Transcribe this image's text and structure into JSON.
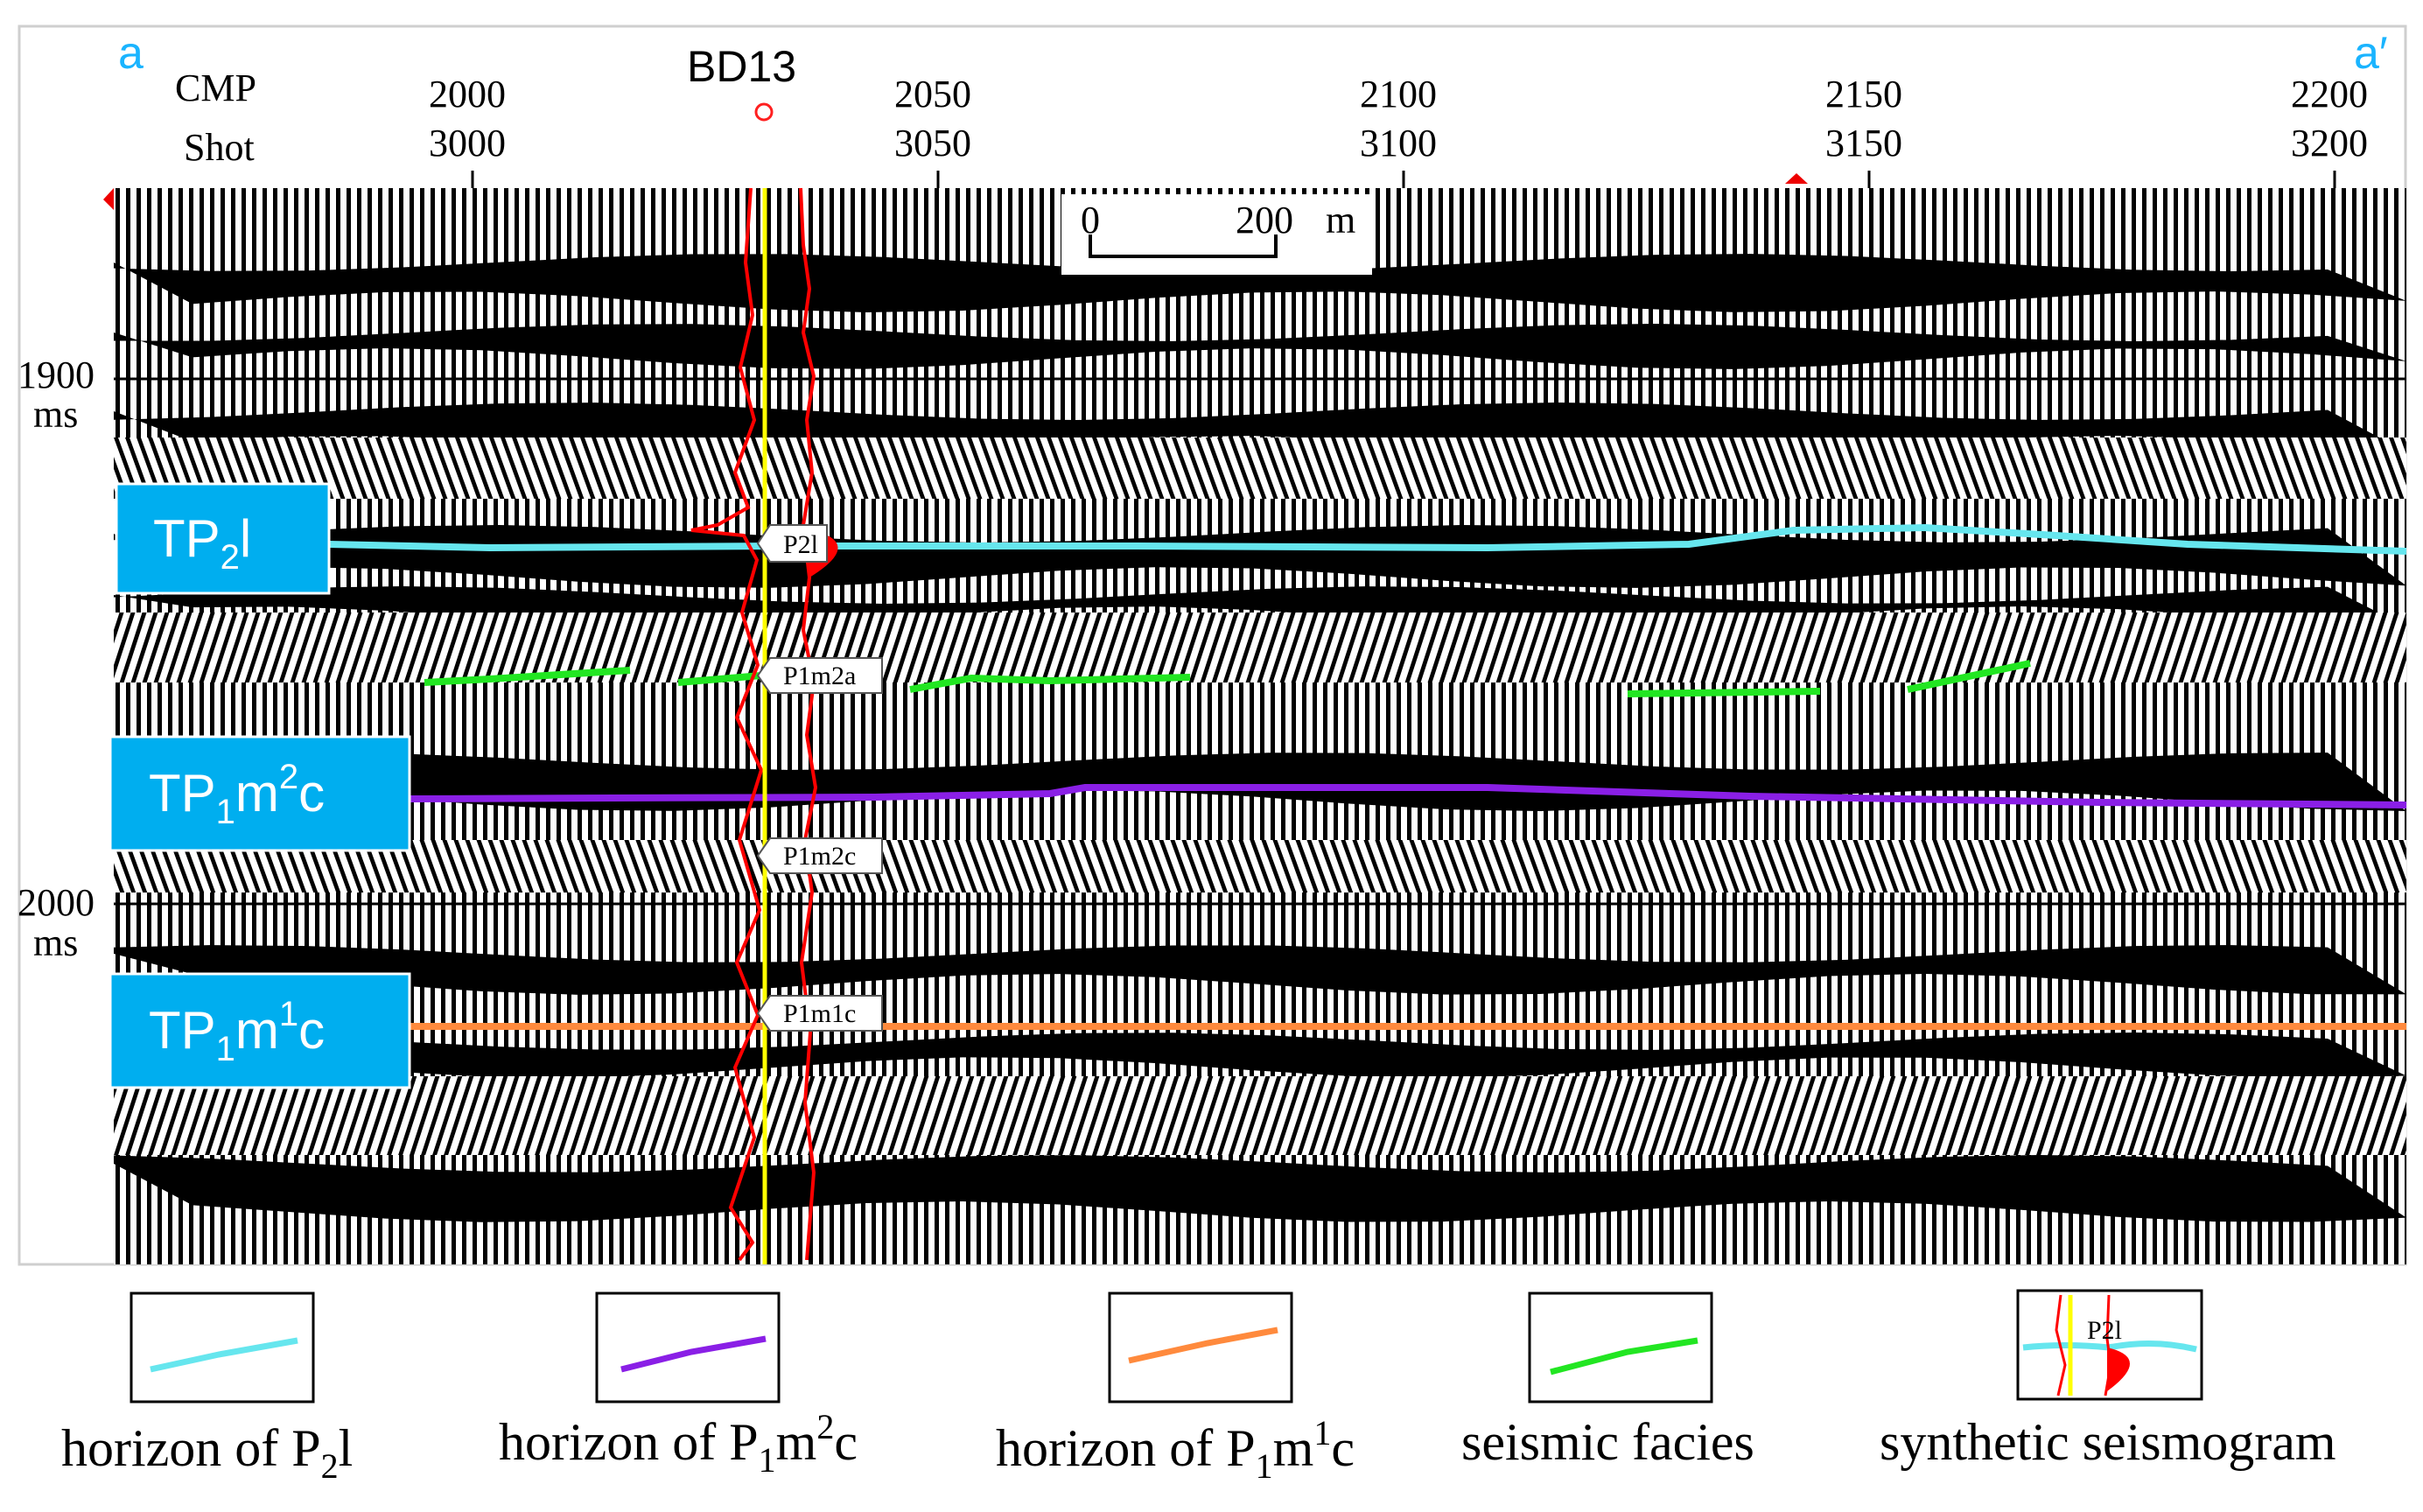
{
  "profile": {
    "corner_left": "a",
    "corner_right": "a′",
    "cmp_label": "CMP",
    "shot_label": "Shot",
    "cmp_ticks": [
      "2000",
      "2050",
      "2100",
      "2150",
      "2200"
    ],
    "shot_ticks": [
      "3000",
      "3050",
      "3100",
      "3150",
      "3200"
    ],
    "time_ticks": [
      {
        "value": "1900",
        "unit": "ms"
      },
      {
        "value": "2000",
        "unit": "ms"
      }
    ],
    "scale_bar": {
      "start": "0",
      "end": "200",
      "unit": "m"
    }
  },
  "well": {
    "name": "BD13",
    "markers": [
      "P2l",
      "P1m2a",
      "P1m2c",
      "P1m1c"
    ]
  },
  "horizons": [
    {
      "id": "p2l",
      "tag_main": "TP",
      "tag_sub": "2",
      "tag_sup": "",
      "tag_end": "l",
      "color": "#66e6ee"
    },
    {
      "id": "p1m2c",
      "tag_main": "TP",
      "tag_sub": "1",
      "tag_sup": "2",
      "tag_mid": "m",
      "tag_end": "c",
      "color": "#8a1fe6"
    },
    {
      "id": "p1m1c",
      "tag_main": "TP",
      "tag_sub": "1",
      "tag_sup": "1",
      "tag_mid": "m",
      "tag_end": "c",
      "color": "#ff8a3d"
    }
  ],
  "colors": {
    "tag_box": "#00aeef",
    "facies": "#22e622",
    "well_line": "#ffff00",
    "log_curve": "#ff0000",
    "corner": "#1ab4ff"
  },
  "legend": [
    {
      "icon": "cyan-line-icon",
      "prefix": "horizon of P",
      "sub": "2",
      "sup": "",
      "mid": "l",
      "end": ""
    },
    {
      "icon": "purple-line-icon",
      "prefix": "horizon of P",
      "sub": "1",
      "mid": "m",
      "sup": "2",
      "end": "c"
    },
    {
      "icon": "orange-line-icon",
      "prefix": "horizon of P",
      "sub": "1",
      "mid": "m",
      "sup": "1",
      "end": "c"
    },
    {
      "icon": "green-line-icon",
      "prefix": "seismic facies",
      "sub": "",
      "mid": "",
      "sup": "",
      "end": ""
    },
    {
      "icon": "synthetic-seismogram-icon",
      "prefix": "synthetic seismogram",
      "sub": "",
      "mid": "",
      "sup": "",
      "end": "",
      "inner_label": "P2l"
    }
  ]
}
